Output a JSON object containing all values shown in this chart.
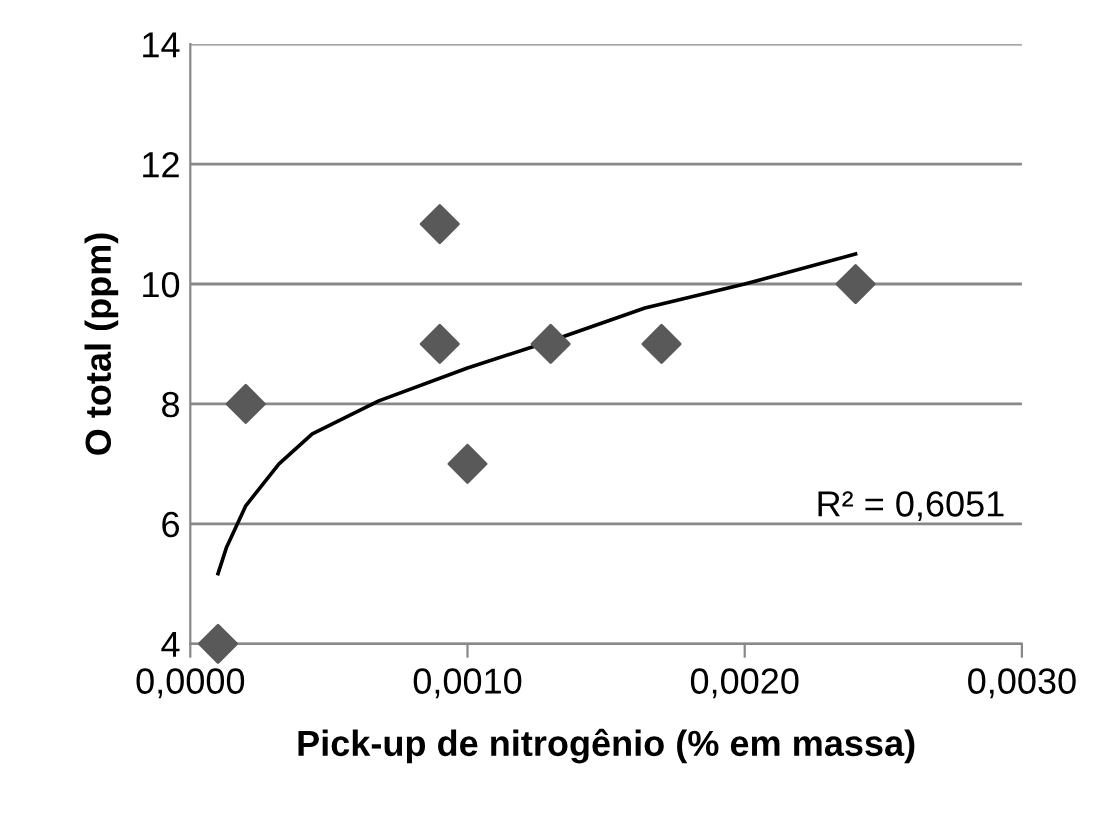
{
  "chart_data": {
    "type": "scatter",
    "xlabel": "Pick-up de nitrogênio (% em massa)",
    "ylabel": "O total (ppm)",
    "xlim": [
      0,
      0.003
    ],
    "xticks": [
      {
        "value": 0,
        "label": "0,0000"
      },
      {
        "value": 0.001,
        "label": "0,0010"
      },
      {
        "value": 0.002,
        "label": "0,0020"
      },
      {
        "value": 0.003,
        "label": "0,0030"
      }
    ],
    "ylim": [
      4,
      14
    ],
    "yticks": [
      4,
      6,
      8,
      10,
      12,
      14
    ],
    "grid": "y",
    "series": [
      {
        "marker": "diamond",
        "color": "#595959",
        "x": [
          0.0001,
          0.0002,
          0.0009,
          0.0009,
          0.001,
          0.0013,
          0.0017,
          0.0024
        ],
        "values": [
          4,
          8,
          11,
          9,
          7,
          9,
          9,
          10
        ]
      },
      {
        "type": "line",
        "marker": "none",
        "color": "#000000",
        "x": [
          0.0001,
          0.00013,
          0.0002,
          0.00032,
          0.00044,
          0.00068,
          0.001,
          0.0013,
          0.00164,
          0.002,
          0.0024
        ],
        "values": [
          5.17,
          5.6,
          6.3,
          7.0,
          7.5,
          8.05,
          8.6,
          9.05,
          9.6,
          10.0,
          10.5
        ]
      }
    ],
    "annotations": [
      "R² = 0,6051"
    ]
  }
}
